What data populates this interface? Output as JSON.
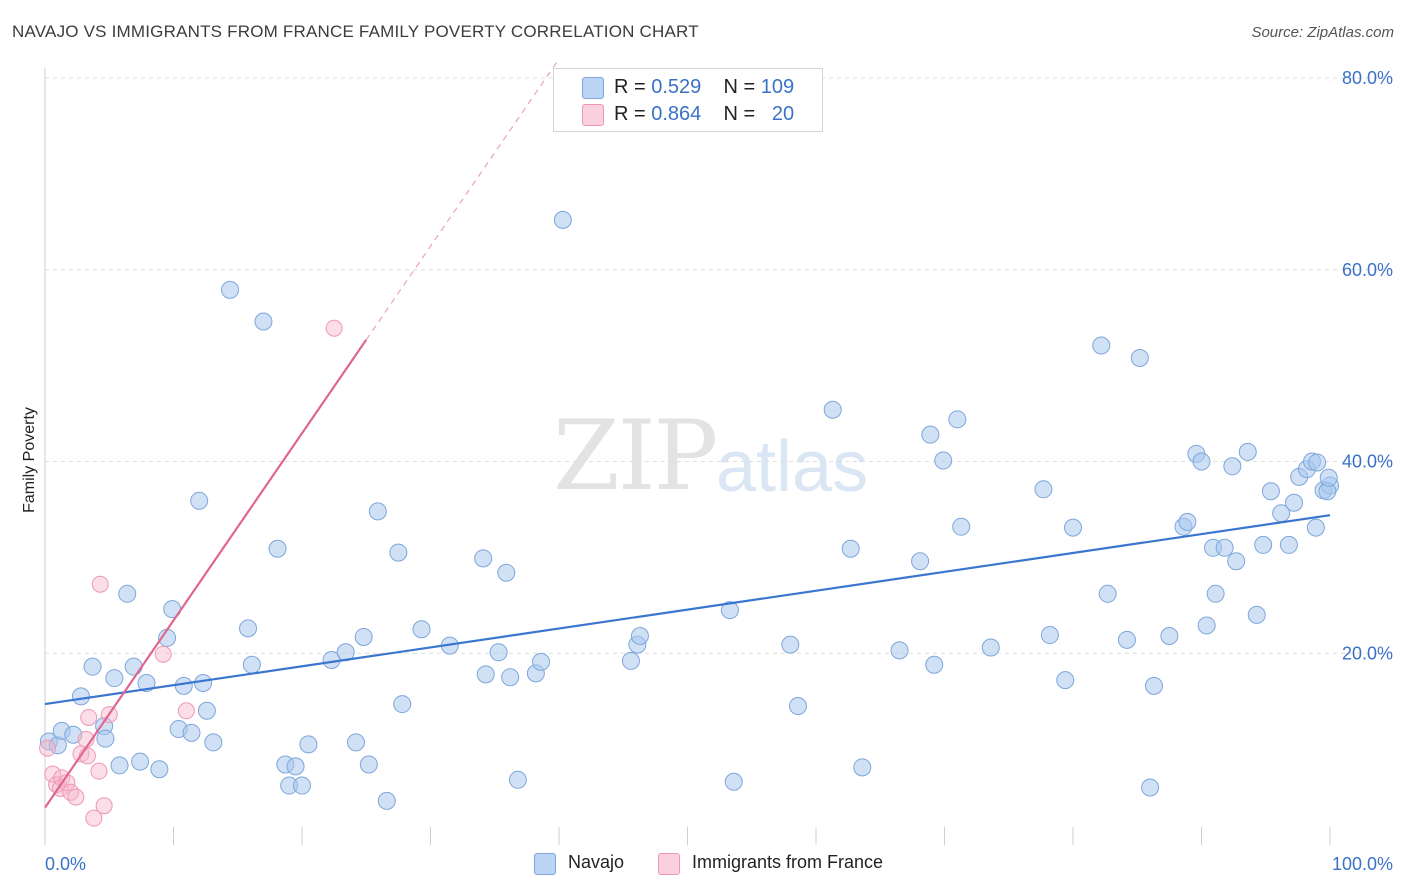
{
  "title": "NAVAJO VS IMMIGRANTS FROM FRANCE FAMILY POVERTY CORRELATION CHART",
  "source": "Source: ZipAtlas.com",
  "watermark": {
    "zip": "ZIP",
    "atlas": "atlas"
  },
  "colors": {
    "navajo": "#a9c8ef",
    "navajo_line": "#3a76cf",
    "france": "#f7b5c9",
    "france_line": "#e06690",
    "accent_text": "#3a72c8"
  },
  "legend": {
    "row1": {
      "r_label": "R = ",
      "r_value": "0.529",
      "n_label": "N = ",
      "n_value": "109"
    },
    "row2": {
      "r_label": "R = ",
      "r_value": "0.864",
      "n_label": "N = ",
      "n_value": "20"
    }
  },
  "bottom_legend": {
    "navajo": "Navajo",
    "france": "Immigrants from France"
  },
  "chart_data": {
    "type": "scatter",
    "title": "NAVAJO VS IMMIGRANTS FROM FRANCE FAMILY POVERTY CORRELATION CHART",
    "xlabel": "",
    "ylabel": "Family Poverty",
    "xlim": [
      0,
      100
    ],
    "ylim": [
      0,
      80
    ],
    "x_tick_labels": {
      "min": "0.0%",
      "max": "100.0%"
    },
    "y_tick_labels": [
      "20.0%",
      "40.0%",
      "60.0%",
      "80.0%"
    ],
    "y_ticks": [
      20,
      40,
      60,
      80
    ],
    "grid": true,
    "series": [
      {
        "name": "Navajo",
        "r": 0.529,
        "n": 109,
        "trend": {
          "x0": 0,
          "y0": 14.7,
          "x1": 100,
          "y1": 34.4
        },
        "points": [
          [
            0.3,
            10.8
          ],
          [
            1.0,
            10.4
          ],
          [
            1.3,
            11.9
          ],
          [
            2.2,
            11.5
          ],
          [
            2.8,
            15.5
          ],
          [
            3.7,
            18.6
          ],
          [
            4.6,
            12.4
          ],
          [
            4.7,
            11.1
          ],
          [
            5.4,
            17.4
          ],
          [
            5.8,
            8.3
          ],
          [
            6.4,
            26.2
          ],
          [
            6.9,
            18.6
          ],
          [
            7.4,
            8.7
          ],
          [
            7.9,
            16.9
          ],
          [
            8.9,
            7.9
          ],
          [
            9.5,
            21.6
          ],
          [
            9.9,
            24.6
          ],
          [
            10.4,
            12.1
          ],
          [
            10.8,
            16.6
          ],
          [
            11.4,
            11.7
          ],
          [
            12.0,
            35.9
          ],
          [
            12.3,
            16.9
          ],
          [
            12.6,
            14.0
          ],
          [
            13.1,
            10.7
          ],
          [
            14.4,
            57.9
          ],
          [
            15.8,
            22.6
          ],
          [
            16.1,
            18.8
          ],
          [
            17.0,
            54.6
          ],
          [
            18.1,
            30.9
          ],
          [
            18.7,
            8.4
          ],
          [
            19.0,
            6.2
          ],
          [
            19.5,
            8.2
          ],
          [
            20.0,
            6.2
          ],
          [
            20.5,
            10.5
          ],
          [
            22.3,
            19.3
          ],
          [
            23.4,
            20.1
          ],
          [
            24.2,
            10.7
          ],
          [
            24.8,
            21.7
          ],
          [
            25.2,
            8.4
          ],
          [
            25.9,
            34.8
          ],
          [
            26.6,
            4.6
          ],
          [
            27.5,
            30.5
          ],
          [
            27.8,
            14.7
          ],
          [
            29.3,
            22.5
          ],
          [
            31.5,
            20.8
          ],
          [
            34.1,
            29.9
          ],
          [
            34.3,
            17.8
          ],
          [
            35.3,
            20.1
          ],
          [
            35.9,
            28.4
          ],
          [
            36.2,
            17.5
          ],
          [
            36.8,
            6.8
          ],
          [
            38.2,
            17.9
          ],
          [
            38.6,
            19.1
          ],
          [
            40.3,
            65.2
          ],
          [
            45.6,
            19.2
          ],
          [
            46.1,
            20.9
          ],
          [
            46.3,
            21.8
          ],
          [
            53.3,
            24.5
          ],
          [
            53.6,
            6.6
          ],
          [
            58.0,
            20.9
          ],
          [
            58.6,
            14.5
          ],
          [
            61.3,
            45.4
          ],
          [
            62.7,
            30.9
          ],
          [
            63.6,
            8.1
          ],
          [
            66.5,
            20.3
          ],
          [
            68.1,
            29.6
          ],
          [
            68.9,
            42.8
          ],
          [
            69.2,
            18.8
          ],
          [
            69.9,
            40.1
          ],
          [
            71.0,
            44.4
          ],
          [
            71.3,
            33.2
          ],
          [
            73.6,
            20.6
          ],
          [
            77.7,
            37.1
          ],
          [
            78.2,
            21.9
          ],
          [
            79.4,
            17.2
          ],
          [
            80.0,
            33.1
          ],
          [
            82.2,
            52.1
          ],
          [
            82.7,
            26.2
          ],
          [
            84.2,
            21.4
          ],
          [
            85.2,
            50.8
          ],
          [
            86.0,
            6.0
          ],
          [
            86.3,
            16.6
          ],
          [
            87.5,
            21.8
          ],
          [
            88.6,
            33.2
          ],
          [
            88.9,
            33.7
          ],
          [
            89.6,
            40.8
          ],
          [
            90.0,
            40.0
          ],
          [
            90.4,
            22.9
          ],
          [
            90.9,
            31.0
          ],
          [
            91.1,
            26.2
          ],
          [
            91.8,
            31.0
          ],
          [
            92.4,
            39.5
          ],
          [
            92.7,
            29.6
          ],
          [
            93.6,
            41.0
          ],
          [
            94.3,
            24.0
          ],
          [
            94.8,
            31.3
          ],
          [
            95.4,
            36.9
          ],
          [
            96.2,
            34.6
          ],
          [
            96.8,
            31.3
          ],
          [
            97.2,
            35.7
          ],
          [
            97.6,
            38.4
          ],
          [
            98.2,
            39.2
          ],
          [
            98.6,
            40.0
          ],
          [
            99.0,
            39.9
          ],
          [
            98.9,
            33.1
          ],
          [
            99.5,
            37.0
          ],
          [
            100.0,
            37.5
          ],
          [
            99.8,
            36.9
          ],
          [
            99.9,
            38.3
          ]
        ]
      },
      {
        "name": "Immigrants from France",
        "r": 0.864,
        "n": 20,
        "trend": {
          "x0": 0,
          "y0": 3.9,
          "x1": 25,
          "y1": 52.7,
          "dash_to_x": 40
        },
        "points": [
          [
            0.2,
            10.1
          ],
          [
            0.6,
            7.4
          ],
          [
            0.9,
            6.3
          ],
          [
            1.2,
            5.9
          ],
          [
            1.3,
            7.0
          ],
          [
            1.7,
            6.5
          ],
          [
            2.0,
            5.5
          ],
          [
            2.4,
            5.0
          ],
          [
            2.8,
            9.5
          ],
          [
            3.2,
            11.0
          ],
          [
            3.3,
            9.3
          ],
          [
            3.4,
            13.3
          ],
          [
            3.8,
            2.8
          ],
          [
            4.2,
            7.7
          ],
          [
            4.3,
            27.2
          ],
          [
            4.6,
            4.1
          ],
          [
            5.0,
            13.6
          ],
          [
            9.2,
            19.9
          ],
          [
            11.0,
            14.0
          ],
          [
            22.5,
            53.9
          ]
        ]
      }
    ]
  }
}
